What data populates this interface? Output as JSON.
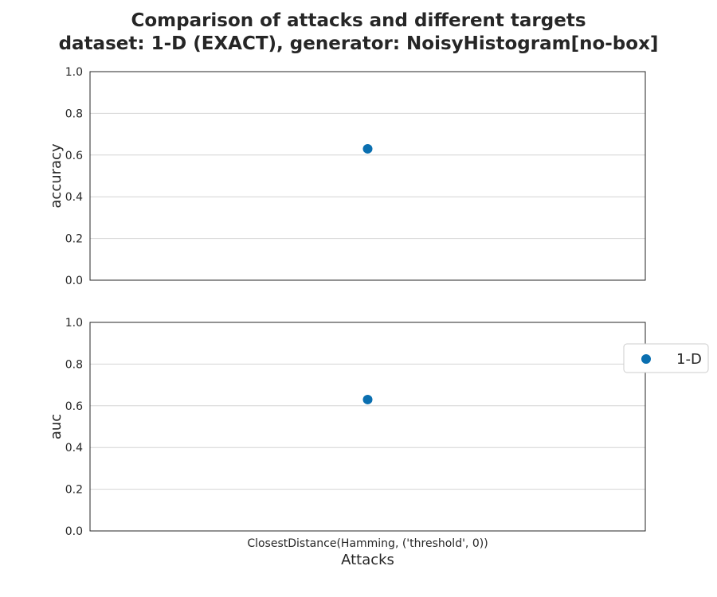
{
  "chart_data": {
    "type": "scatter",
    "title_lines": [
      "Comparison of attacks and different targets",
      "dataset: 1-D (EXACT), generator: NoisyHistogram[no-box]"
    ],
    "xlabel": "Attacks",
    "categories": [
      "ClosestDistance(Hamming, ('threshold', 0))"
    ],
    "legend": {
      "placement": "right",
      "entries": [
        {
          "name": "1-D",
          "color": "#0a6fb0"
        }
      ]
    },
    "grid": true,
    "panels": [
      {
        "ylabel": "accuracy",
        "ylim": [
          0.0,
          1.0
        ],
        "yticks": [
          "0.0",
          "0.2",
          "0.4",
          "0.6",
          "0.8",
          "1.0"
        ],
        "series": [
          {
            "name": "1-D",
            "values": [
              0.63
            ]
          }
        ]
      },
      {
        "ylabel": "auc",
        "ylim": [
          0.0,
          1.0
        ],
        "yticks": [
          "0.0",
          "0.2",
          "0.4",
          "0.6",
          "0.8",
          "1.0"
        ],
        "series": [
          {
            "name": "1-D",
            "values": [
              0.63
            ]
          }
        ]
      }
    ]
  }
}
